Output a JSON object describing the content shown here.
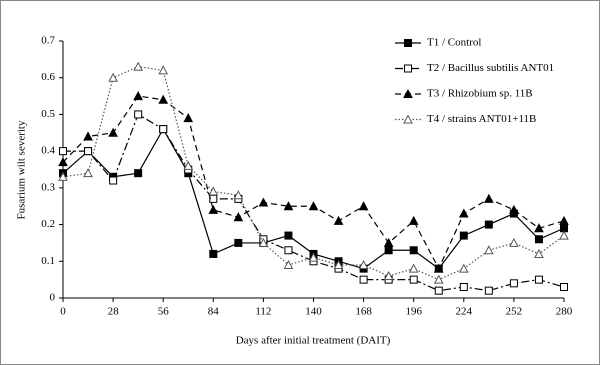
{
  "chart_data": {
    "type": "line",
    "x_label": "Days after initial treatment (DAIT)",
    "y_label": "Fusarium wilt severity",
    "x": [
      0,
      14,
      28,
      42,
      56,
      70,
      84,
      98,
      112,
      126,
      140,
      154,
      168,
      182,
      196,
      210,
      224,
      238,
      252,
      266,
      280
    ],
    "xlim": [
      0,
      280
    ],
    "xticks": [
      0,
      28,
      56,
      84,
      112,
      140,
      168,
      196,
      224,
      252,
      280
    ],
    "ylim": [
      0,
      0.7
    ],
    "yticks": [
      0,
      0.1,
      0.2,
      0.3,
      0.4,
      0.5,
      0.6,
      0.7
    ],
    "legend": "upper-right",
    "series": [
      {
        "name": "T1 / Control",
        "color": "#000000",
        "marker": "filled-square",
        "dash": "solid",
        "values": [
          0.34,
          0.4,
          0.33,
          0.34,
          0.46,
          0.34,
          0.12,
          0.15,
          0.15,
          0.17,
          0.12,
          0.1,
          0.08,
          0.13,
          0.13,
          0.08,
          0.17,
          0.2,
          0.23,
          0.16,
          0.19
        ]
      },
      {
        "name": "T2 / Bacillus subtilis ANT01",
        "color": "#000000",
        "marker": "open-square",
        "dash": "dash-dot",
        "values": [
          0.4,
          0.4,
          0.32,
          0.5,
          0.46,
          0.35,
          0.27,
          0.27,
          0.16,
          0.13,
          0.1,
          0.08,
          0.05,
          0.05,
          0.05,
          0.02,
          0.03,
          0.02,
          0.04,
          0.05,
          0.03
        ]
      },
      {
        "name": "T3 / Rhizobium sp. 11B",
        "color": "#000000",
        "marker": "filled-triangle",
        "dash": "dashed",
        "values": [
          0.37,
          0.44,
          0.45,
          0.55,
          0.54,
          0.49,
          0.24,
          0.22,
          0.26,
          0.25,
          0.25,
          0.21,
          0.25,
          0.15,
          0.21,
          0.08,
          0.23,
          0.27,
          0.24,
          0.19,
          0.21
        ]
      },
      {
        "name": "T4 / strains ANT01+11B",
        "color": "#555555",
        "marker": "open-triangle",
        "dash": "dotted",
        "values": [
          0.33,
          0.34,
          0.6,
          0.63,
          0.62,
          0.36,
          0.29,
          0.28,
          0.15,
          0.09,
          0.11,
          0.09,
          0.09,
          0.06,
          0.08,
          0.05,
          0.08,
          0.13,
          0.15,
          0.12,
          0.17
        ]
      }
    ]
  }
}
